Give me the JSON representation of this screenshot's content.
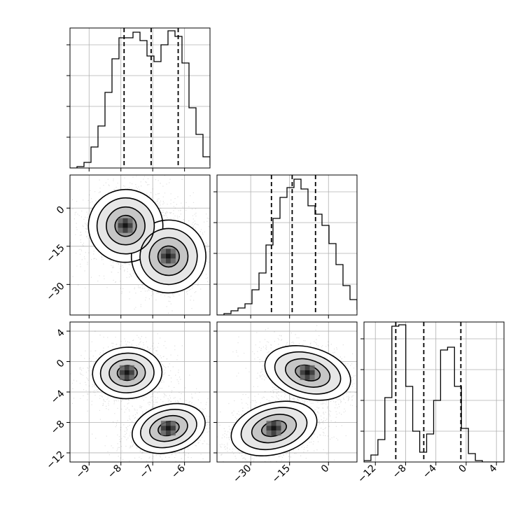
{
  "chart_data": {
    "type": "corner",
    "grid": true,
    "panels": [
      {
        "kind": "histogram",
        "row": 0,
        "col": 0,
        "xlim": [
          -9.6,
          -5.2
        ],
        "quantiles": [
          -7.9,
          -7.05,
          -6.2
        ],
        "bins_start": -9.6,
        "bin_width": 0.22,
        "counts": [
          0.0,
          0.01,
          0.04,
          0.15,
          0.3,
          0.54,
          0.78,
          0.93,
          0.93,
          0.97,
          0.91,
          0.8,
          0.76,
          0.88,
          0.98,
          0.94,
          0.75,
          0.43,
          0.24,
          0.08,
          0.02
        ]
      },
      {
        "kind": "histogram",
        "row": 1,
        "col": 1,
        "xlim": [
          -43,
          11
        ],
        "quantiles": [
          -22,
          -14,
          -5
        ],
        "bins_start": -43,
        "bin_width": 2.7,
        "counts": [
          0.0,
          0.01,
          0.03,
          0.05,
          0.08,
          0.18,
          0.3,
          0.5,
          0.69,
          0.84,
          0.91,
          0.97,
          0.9,
          0.78,
          0.72,
          0.64,
          0.51,
          0.36,
          0.21,
          0.11,
          0.04,
          0.01
        ]
      },
      {
        "kind": "histogram",
        "row": 2,
        "col": 2,
        "xlim": [
          -13.5,
          5
        ],
        "quantiles": [
          -9.3,
          -5.6,
          -0.7
        ],
        "bins_start": -13.5,
        "bin_width": 0.92,
        "counts": [
          0.01,
          0.05,
          0.16,
          0.46,
          0.97,
          0.98,
          0.54,
          0.22,
          0.07,
          0.2,
          0.44,
          0.8,
          0.82,
          0.54,
          0.24,
          0.06,
          0.01,
          0.0,
          0.0
        ]
      },
      {
        "kind": "contour",
        "row": 1,
        "col": 0,
        "xlim": [
          -9.6,
          -5.2
        ],
        "ylim": [
          -42,
          13
        ],
        "modes": [
          {
            "x": -7.85,
            "y": -7,
            "sx": 0.45,
            "sy": 5.5,
            "rho": 0.1
          },
          {
            "x": -6.5,
            "y": -19,
            "sx": 0.45,
            "sy": 5.5,
            "rho": 0.1
          }
        ]
      },
      {
        "kind": "contour",
        "row": 2,
        "col": 0,
        "xlim": [
          -9.6,
          -5.2
        ],
        "ylim": [
          -13.2,
          5.2
        ],
        "modes": [
          {
            "x": -7.8,
            "y": -1.5,
            "sx": 0.42,
            "sy": 1.3,
            "rho": 0.05
          },
          {
            "x": -6.5,
            "y": -8.8,
            "sx": 0.45,
            "sy": 1.2,
            "rho": 0.3
          }
        ]
      },
      {
        "kind": "contour",
        "row": 2,
        "col": 1,
        "xlim": [
          -43,
          11
        ],
        "ylim": [
          -13.2,
          5.2
        ],
        "modes": [
          {
            "x": -8,
            "y": -1.5,
            "sx": 6.5,
            "sy": 1.3,
            "rho": -0.3
          },
          {
            "x": -21,
            "y": -8.8,
            "sx": 6.5,
            "sy": 1.3,
            "rho": 0.3
          }
        ]
      }
    ],
    "x_ticks": [
      {
        "col": 0,
        "values": [
          -9,
          -8,
          -7,
          -6
        ],
        "labels": [
          "−9",
          "−8",
          "−7",
          "−6"
        ]
      },
      {
        "col": 1,
        "values": [
          -30,
          -15,
          0
        ],
        "labels": [
          "−30",
          "−15",
          "0"
        ]
      },
      {
        "col": 2,
        "values": [
          -12,
          -8,
          -4,
          0,
          4
        ],
        "labels": [
          "−12",
          "−8",
          "−4",
          "0",
          "4"
        ]
      }
    ],
    "y_ticks": [
      {
        "row": 1,
        "values": [
          0,
          -15,
          -30
        ],
        "labels": [
          "0",
          "−15",
          "−30"
        ]
      },
      {
        "row": 2,
        "values": [
          4,
          0,
          -4,
          -8,
          -12
        ],
        "labels": [
          "4",
          "0",
          "−4",
          "−8",
          "−12"
        ]
      }
    ]
  }
}
